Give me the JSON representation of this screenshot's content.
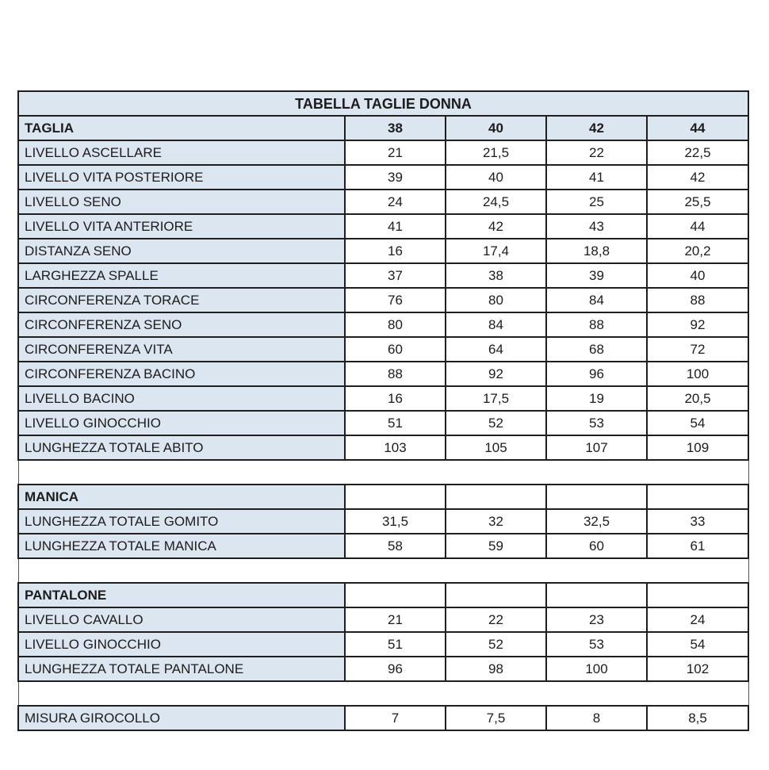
{
  "table": {
    "title": "TABELLA TAGLIE DONNA",
    "colors": {
      "header_bg": "#dce6f1",
      "cell_bg": "#ffffff",
      "border": "#1f1f1f",
      "text": "#1c1c1c"
    },
    "sections": [
      {
        "header": {
          "label": "TAGLIA",
          "values": [
            "38",
            "40",
            "42",
            "44"
          ]
        },
        "rows": [
          {
            "label": "LIVELLO ASCELLARE",
            "values": [
              "21",
              "21,5",
              "22",
              "22,5"
            ]
          },
          {
            "label": "LIVELLO VITA POSTERIORE",
            "values": [
              "39",
              "40",
              "41",
              "42"
            ]
          },
          {
            "label": "LIVELLO SENO",
            "values": [
              "24",
              "24,5",
              "25",
              "25,5"
            ]
          },
          {
            "label": "LIVELLO VITA ANTERIORE",
            "values": [
              "41",
              "42",
              "43",
              "44"
            ]
          },
          {
            "label": "DISTANZA SENO",
            "values": [
              "16",
              "17,4",
              "18,8",
              "20,2"
            ]
          },
          {
            "label": "LARGHEZZA SPALLE",
            "values": [
              "37",
              "38",
              "39",
              "40"
            ]
          },
          {
            "label": "CIRCONFERENZA TORACE",
            "values": [
              "76",
              "80",
              "84",
              "88"
            ]
          },
          {
            "label": "CIRCONFERENZA SENO",
            "values": [
              "80",
              "84",
              "88",
              "92"
            ]
          },
          {
            "label": "CIRCONFERENZA VITA",
            "values": [
              "60",
              "64",
              "68",
              "72"
            ]
          },
          {
            "label": "CIRCONFERENZA BACINO",
            "values": [
              "88",
              "92",
              "96",
              "100"
            ]
          },
          {
            "label": "LIVELLO BACINO",
            "values": [
              "16",
              "17,5",
              "19",
              "20,5"
            ]
          },
          {
            "label": "LIVELLO GINOCCHIO",
            "values": [
              "51",
              "52",
              "53",
              "54"
            ]
          },
          {
            "label": "LUNGHEZZA TOTALE ABITO",
            "values": [
              "103",
              "105",
              "107",
              "109"
            ]
          }
        ]
      },
      {
        "header": {
          "label": "MANICA",
          "values": [
            "",
            "",
            "",
            ""
          ]
        },
        "rows": [
          {
            "label": "LUNGHEZZA TOTALE GOMITO",
            "values": [
              "31,5",
              "32",
              "32,5",
              "33"
            ]
          },
          {
            "label": "LUNGHEZZA TOTALE MANICA",
            "values": [
              "58",
              "59",
              "60",
              "61"
            ]
          }
        ]
      },
      {
        "header": {
          "label": "PANTALONE",
          "values": [
            "",
            "",
            "",
            ""
          ]
        },
        "rows": [
          {
            "label": "LIVELLO CAVALLO",
            "values": [
              "21",
              "22",
              "23",
              "24"
            ]
          },
          {
            "label": "LIVELLO GINOCCHIO",
            "values": [
              "51",
              "52",
              "53",
              "54"
            ]
          },
          {
            "label": "LUNGHEZZA TOTALE PANTALONE",
            "values": [
              "96",
              "98",
              "100",
              "102"
            ]
          }
        ]
      },
      {
        "header": null,
        "rows": [
          {
            "label": "MISURA GIROCOLLO",
            "values": [
              "7",
              "7,5",
              "8",
              "8,5"
            ]
          }
        ]
      }
    ]
  }
}
